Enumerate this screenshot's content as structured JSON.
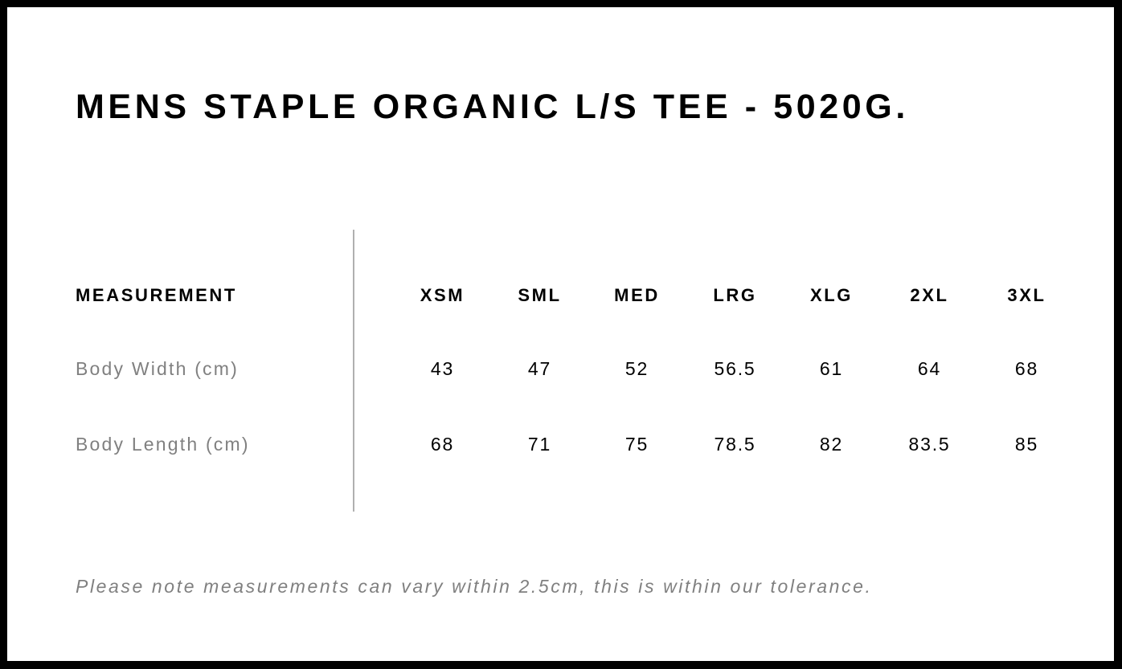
{
  "title": "MENS STAPLE ORGANIC L/S TEE - 5020G.",
  "table": {
    "header_label": "MEASUREMENT",
    "sizes": [
      "XSM",
      "SML",
      "MED",
      "LRG",
      "XLG",
      "2XL",
      "3XL"
    ],
    "rows": [
      {
        "label": "Body Width (cm)",
        "values": [
          "43",
          "47",
          "52",
          "56.5",
          "61",
          "64",
          "68"
        ]
      },
      {
        "label": "Body Length (cm)",
        "values": [
          "68",
          "71",
          "75",
          "78.5",
          "82",
          "83.5",
          "85"
        ]
      }
    ]
  },
  "note": "Please note measurements can vary within 2.5cm, this is within our tolerance."
}
